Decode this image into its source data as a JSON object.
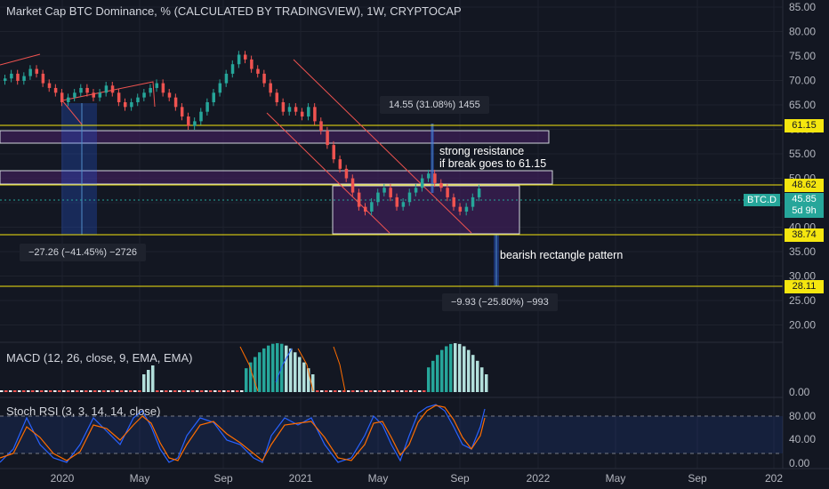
{
  "header": {
    "title": "Market Cap BTC Dominance, % (CALCULATED BY TRADINGVIEW), 1W, CRYPTOCAP"
  },
  "price_scale": {
    "ticks": [
      "85.00",
      "80.00",
      "75.00",
      "70.00",
      "65.00",
      "60.00",
      "55.00",
      "50.00",
      "45.00",
      "40.00",
      "35.00",
      "30.00",
      "25.00",
      "20.00"
    ],
    "badges": [
      {
        "value": "61.15",
        "color": "#f5e60f"
      },
      {
        "value": "48.62",
        "color": "#f5e60f"
      },
      {
        "value": "38.74",
        "color": "#f5e60f"
      },
      {
        "value": "28.11",
        "color": "#f5e60f"
      }
    ],
    "symbol_label": "BTC.D",
    "current_value": "45.85",
    "countdown": "5d 9h"
  },
  "annotations": {
    "measure_up": "14.55 (31.08%) 1455",
    "measure_left": "−27.26 (−41.45%) −2726",
    "measure_down": "−9.93 (−25.80%) −993",
    "resistance_line1": "strong resistance",
    "resistance_line2": "if break goes to 61.15",
    "pattern": "bearish rectangle pattern"
  },
  "macd": {
    "label": "MACD (12, 26, close, 9, EMA, EMA)",
    "axis_value": "0.00"
  },
  "stoch": {
    "label": "Stoch RSI (3, 3, 14, 14, close)",
    "ticks": [
      "80.00",
      "40.00",
      "0.00"
    ]
  },
  "time_axis": {
    "labels": [
      "2020",
      "May",
      "Sep",
      "2021",
      "May",
      "Sep",
      "2022",
      "May",
      "Sep",
      "202"
    ]
  },
  "colors": {
    "background": "#131722",
    "up": "#26a69a",
    "down": "#ef5350",
    "level_line": "#f5e60f",
    "zone_fill": "#3c1f55",
    "macd_hist_up": "#26a69a",
    "macd_hist_light": "#b2dfdb",
    "macd_hist_down": "#ef5350",
    "stoch_k": "#2962ff",
    "stoch_d": "#ff6d00"
  },
  "chart_data": {
    "type": "candlestick",
    "series": [
      {
        "values": [
          69,
          70,
          68.5,
          69.5,
          71,
          70,
          68,
          67,
          66,
          64,
          65,
          66,
          67,
          66,
          65,
          66,
          67.5,
          66,
          64,
          63,
          64,
          65,
          66,
          67,
          68,
          66,
          65,
          63,
          61,
          59,
          60,
          62,
          64,
          66,
          68,
          70,
          72,
          74,
          73,
          71,
          70,
          68,
          66,
          64,
          62,
          63,
          62,
          61,
          63,
          60,
          58,
          55,
          52,
          50,
          48,
          45,
          42,
          41,
          43,
          45,
          46,
          44,
          42,
          43,
          45,
          46,
          48,
          49,
          47,
          46,
          44,
          42,
          41,
          42,
          44,
          45.85
        ]
      }
    ],
    "levels": [
      61.15,
      48.62,
      38.74,
      28.11
    ],
    "ylim": [
      15,
      87
    ]
  }
}
